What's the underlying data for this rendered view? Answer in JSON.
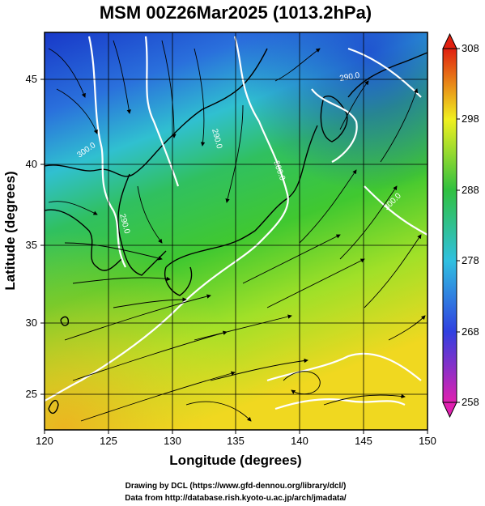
{
  "title": "MSM 00Z26Mar2025 (1013.2hPa)",
  "xlabel": "Longitude (degrees)",
  "ylabel": "Latitude  (degrees)",
  "credits": [
    "Drawing by DCL (https://www.gfd-dennou.org/library/dcl/)",
    "Data from http://database.rish.kyoto-u.ac.jp/arch/jmadata/"
  ],
  "map": {
    "lon_range": [
      120,
      150
    ],
    "lat_range": [
      22.5,
      47.5
    ],
    "lon_ticks": [
      "120",
      "125",
      "130",
      "135",
      "140",
      "145",
      "150"
    ],
    "lat_ticks": [
      "25",
      "30",
      "35",
      "40",
      "45"
    ],
    "grid": true,
    "field": "potential temperature (K) with streamlines"
  },
  "colorbar": {
    "min": 258,
    "max": 308,
    "ticks": [
      "258",
      "268",
      "278",
      "288",
      "298",
      "308"
    ],
    "colors": [
      "#e020b0",
      "#3040e0",
      "#30c0e0",
      "#30c040",
      "#f0f020",
      "#e02010"
    ]
  },
  "contour_labels": [
    "300.0",
    "290.0",
    "290.0",
    "290.0",
    "300.0",
    "300.0"
  ]
}
